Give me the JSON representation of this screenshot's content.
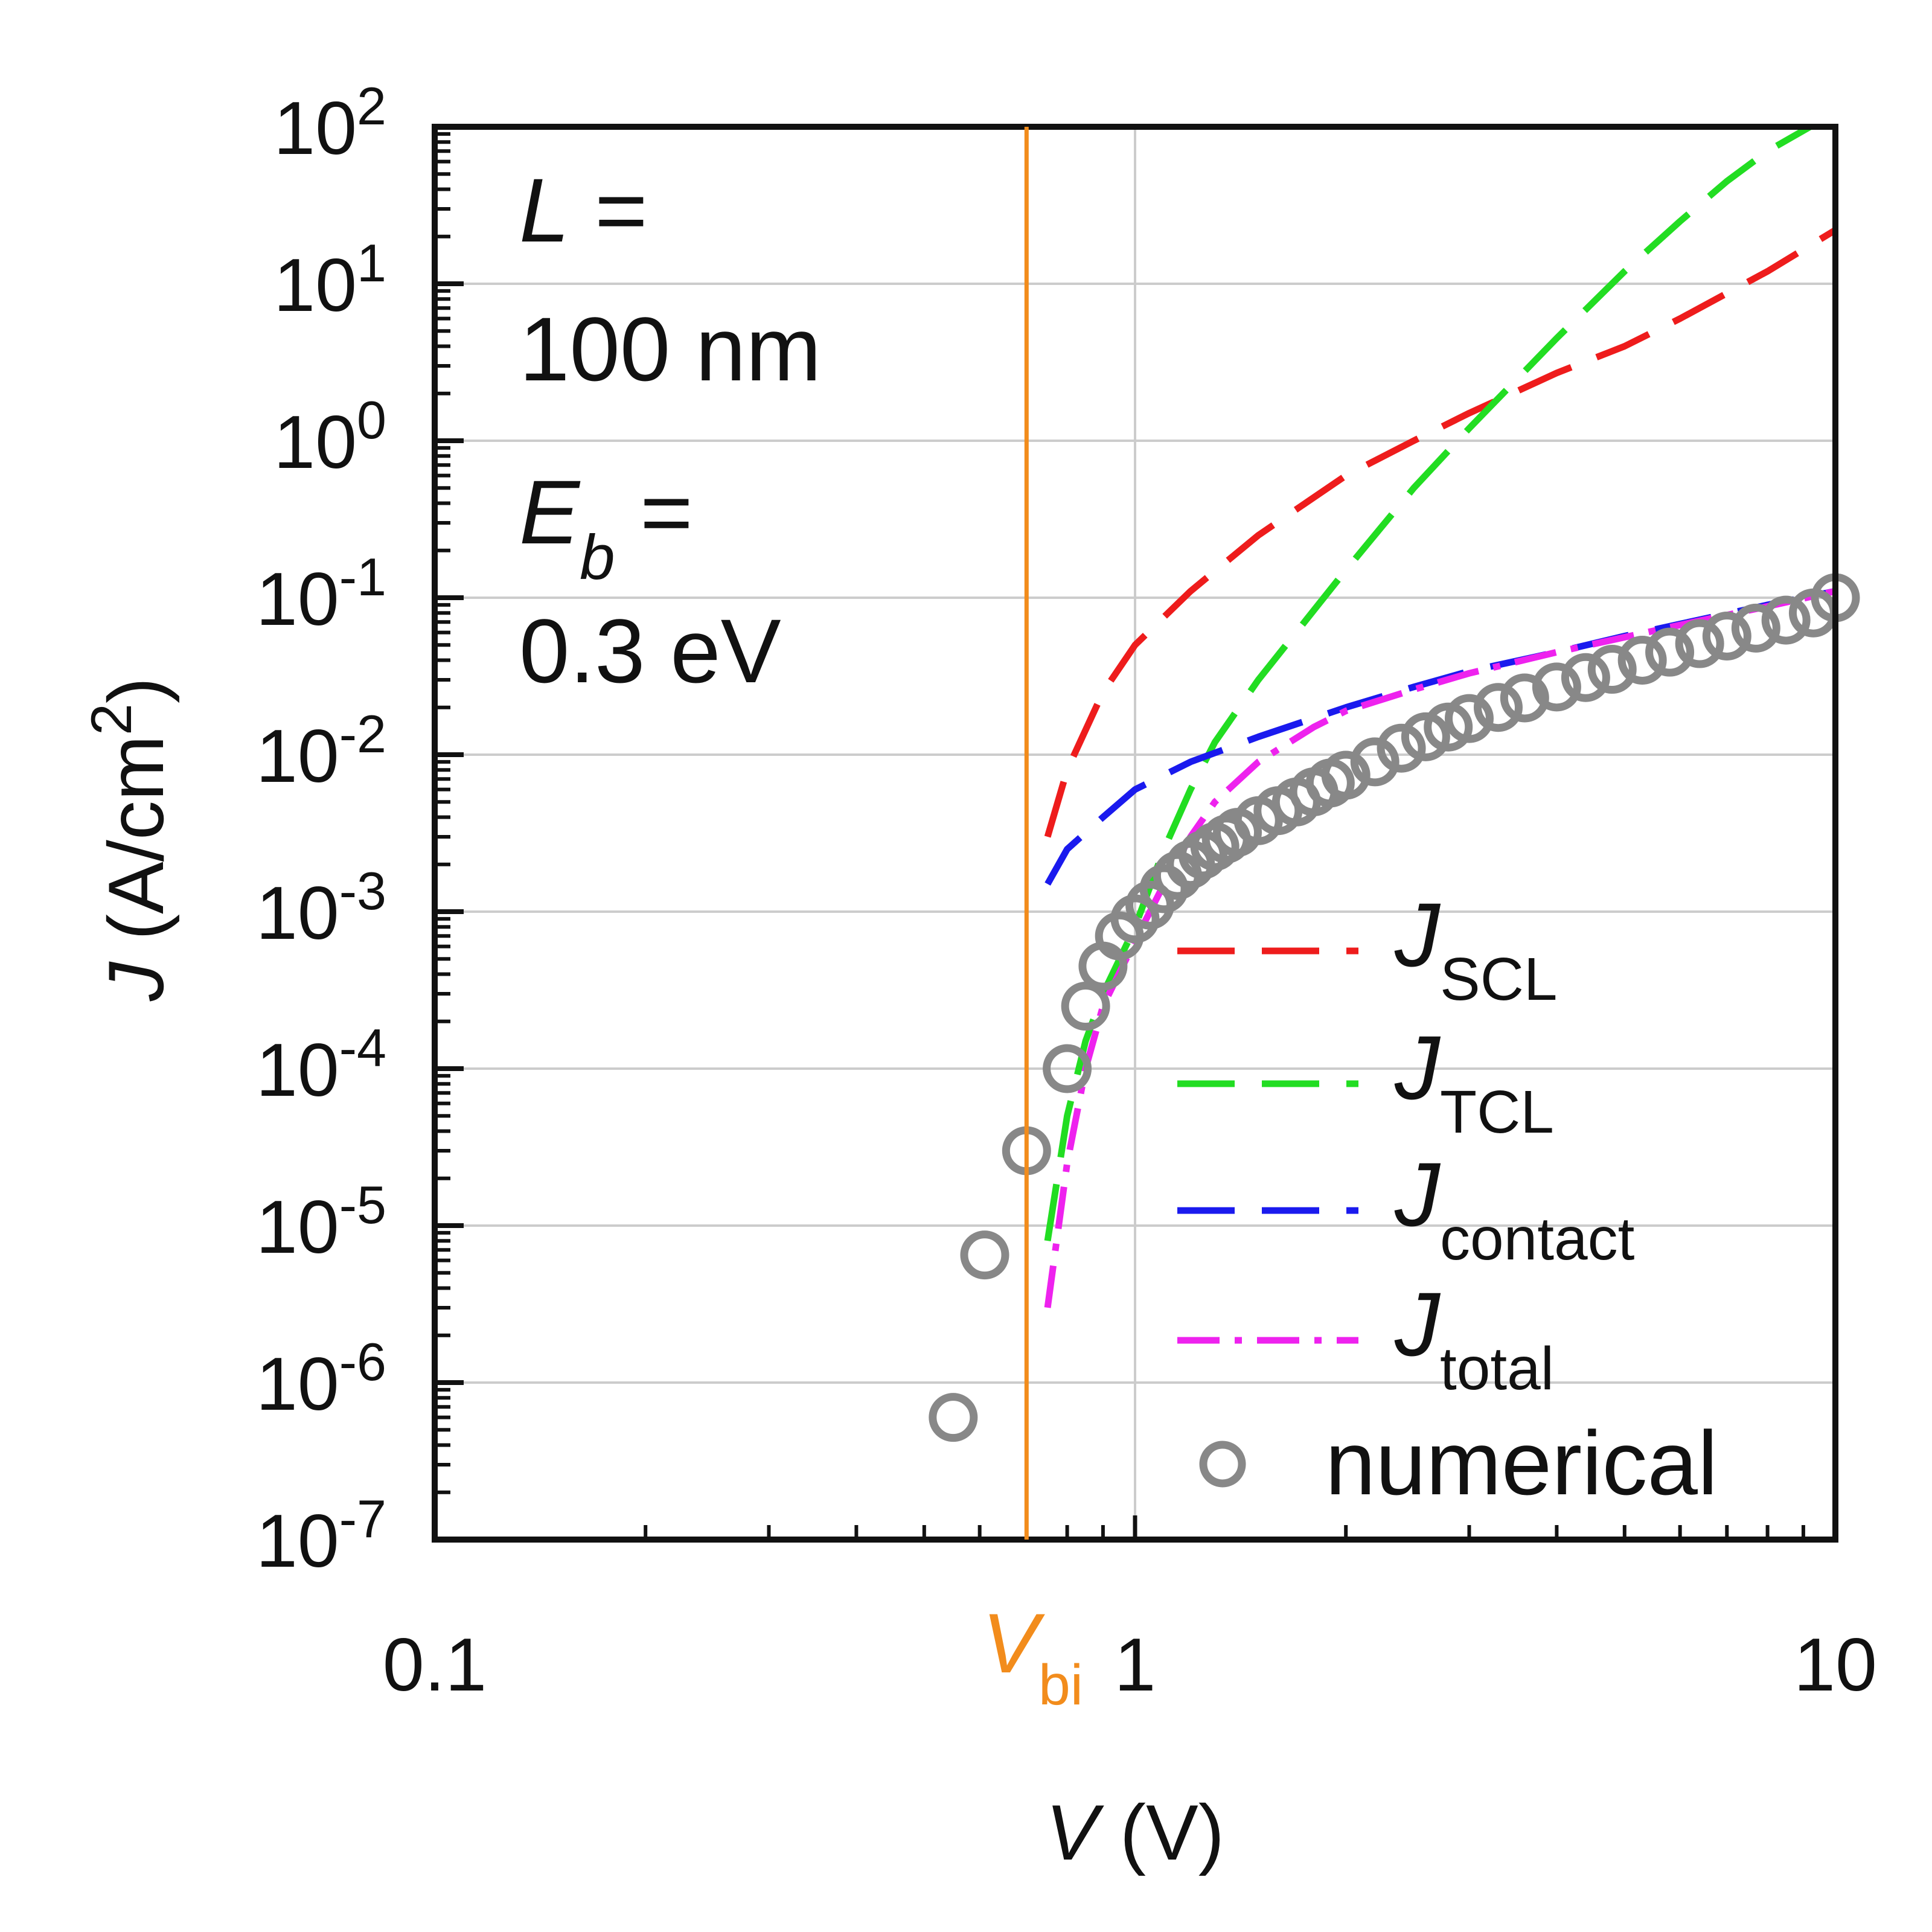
{
  "chart_data": {
    "type": "line",
    "x_scale": "log",
    "y_scale": "log",
    "xlim": [
      0.1,
      10
    ],
    "ylim": [
      1e-07,
      100
    ],
    "grid": true,
    "legend_position": "bottom-right",
    "x_ticks": [
      {
        "value": 0.1,
        "label": "0.1"
      },
      {
        "value": 1,
        "label": "1"
      },
      {
        "value": 10,
        "label": "10"
      }
    ],
    "y_ticks": [
      {
        "value": 1e-07,
        "base": "10",
        "exp": "-7"
      },
      {
        "value": 1e-06,
        "base": "10",
        "exp": "-6"
      },
      {
        "value": 1e-05,
        "base": "10",
        "exp": "-5"
      },
      {
        "value": 0.0001,
        "base": "10",
        "exp": "-4"
      },
      {
        "value": 0.001,
        "base": "10",
        "exp": "-3"
      },
      {
        "value": 0.01,
        "base": "10",
        "exp": "-2"
      },
      {
        "value": 0.1,
        "base": "10",
        "exp": "-1"
      },
      {
        "value": 1,
        "base": "10",
        "exp": "0"
      },
      {
        "value": 10,
        "base": "10",
        "exp": "1"
      },
      {
        "value": 100,
        "base": "10",
        "exp": "2"
      }
    ],
    "xlabel": {
      "var": "V",
      "unit": " (V)"
    },
    "ylabel": {
      "var": "J",
      "unit": " (A/cm",
      "sup": "2",
      "close": ")"
    },
    "annotation": {
      "line1_var": "L",
      "line1_rest": " =",
      "line2": "100 nm",
      "line3_var": "E",
      "line3_sub": "b",
      "line3_rest": " =",
      "line4": "0.3 eV"
    },
    "reference_line": {
      "x": 0.7,
      "label_var": "V",
      "label_sub": "bi",
      "color": "#f28c1c"
    },
    "series": [
      {
        "name_main": "J",
        "name_sub": "SCL",
        "color": "#ee1c1c",
        "dash": "dashed",
        "x": [
          0.75,
          0.8,
          0.9,
          1.0,
          1.2,
          1.5,
          2,
          2.5,
          3,
          4,
          5,
          6,
          8,
          10
        ],
        "y": [
          0.003,
          0.008,
          0.025,
          0.05,
          0.11,
          0.25,
          0.6,
          1.0,
          1.5,
          2.7,
          4.0,
          6.0,
          12,
          22
        ]
      },
      {
        "name_main": "J",
        "name_sub": "TCL",
        "color": "#22dd22",
        "dash": "dashed",
        "x": [
          0.75,
          0.8,
          0.85,
          0.9,
          1.0,
          1.1,
          1.2,
          1.3,
          1.5,
          2,
          2.5,
          3,
          4,
          5,
          6,
          7,
          8,
          9.2
        ],
        "y": [
          8e-06,
          5e-05,
          0.00015,
          0.0003,
          0.0008,
          0.0025,
          0.006,
          0.012,
          0.03,
          0.15,
          0.5,
          1.2,
          4.5,
          12,
          25,
          45,
          70,
          100
        ]
      },
      {
        "name_main": "J",
        "name_sub": "contact",
        "color": "#1a1aee",
        "dash": "dashed",
        "x": [
          0.75,
          0.8,
          0.9,
          1.0,
          1.2,
          1.5,
          2,
          2.5,
          3,
          4,
          5,
          6,
          8,
          10
        ],
        "y": [
          0.0015,
          0.0025,
          0.004,
          0.006,
          0.009,
          0.013,
          0.02,
          0.027,
          0.034,
          0.045,
          0.057,
          0.068,
          0.09,
          0.11
        ]
      },
      {
        "name_main": "J",
        "name_sub": "total",
        "color": "#ee22ee",
        "dash": "dashdot",
        "x": [
          0.75,
          0.8,
          0.85,
          0.9,
          1.0,
          1.1,
          1.2,
          1.3,
          1.5,
          1.8,
          2,
          2.5,
          3,
          4,
          5,
          6,
          8,
          10
        ],
        "y": [
          3e-06,
          2.5e-05,
          0.0001,
          0.00025,
          0.00065,
          0.0015,
          0.003,
          0.005,
          0.009,
          0.015,
          0.019,
          0.026,
          0.033,
          0.045,
          0.056,
          0.067,
          0.088,
          0.11
        ]
      },
      {
        "name_main": "",
        "name_sub": "",
        "name": "numerical",
        "color": "#888888",
        "marker": "circle-open",
        "x": [
          0.55,
          0.61,
          0.7,
          0.8,
          0.85,
          0.9,
          0.95,
          1.0,
          1.05,
          1.1,
          1.15,
          1.2,
          1.25,
          1.3,
          1.35,
          1.4,
          1.5,
          1.6,
          1.7,
          1.8,
          1.9,
          2.0,
          2.2,
          2.4,
          2.6,
          2.8,
          3.0,
          3.3,
          3.6,
          4.0,
          4.4,
          4.8,
          5.3,
          5.8,
          6.4,
          7.0,
          7.7,
          8.5,
          9.3,
          10.0
        ],
        "y": [
          6e-07,
          6.5e-06,
          3e-05,
          0.0001,
          0.00025,
          0.00045,
          0.0007,
          0.0009,
          0.0011,
          0.0014,
          0.0017,
          0.002,
          0.0023,
          0.0026,
          0.0029,
          0.0032,
          0.0038,
          0.0044,
          0.005,
          0.0058,
          0.0066,
          0.0074,
          0.009,
          0.011,
          0.013,
          0.015,
          0.017,
          0.02,
          0.023,
          0.027,
          0.031,
          0.035,
          0.04,
          0.045,
          0.051,
          0.057,
          0.064,
          0.072,
          0.08,
          0.1
        ]
      }
    ]
  }
}
